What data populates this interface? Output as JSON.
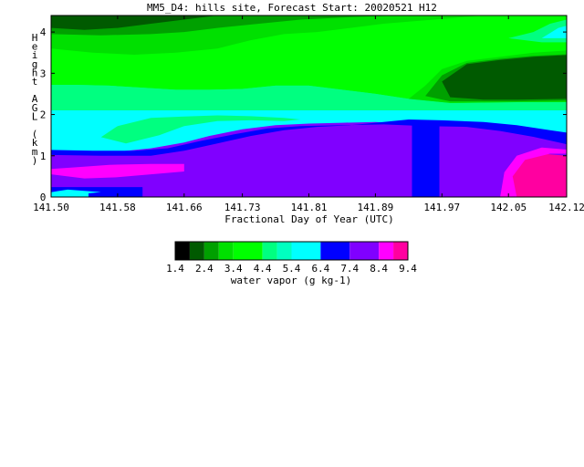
{
  "title": "MM5_D4: hills site,  Forecast Start: 20020521 H12",
  "chart_data": {
    "type": "heatmap",
    "title": "MM5_D4: hills site,  Forecast Start: 20020521 H12",
    "xlabel": "Fractional Day of Year (UTC)",
    "ylabel": "Height AGL (km)",
    "xlim": [
      141.5,
      142.12
    ],
    "ylim": [
      0,
      4.4
    ],
    "x_ticks": [
      "141.50",
      "141.58",
      "141.66",
      "141.73",
      "141.81",
      "141.89",
      "141.97",
      "142.05",
      "142.12"
    ],
    "x_tick_values": [
      141.5,
      141.58,
      141.66,
      141.73,
      141.81,
      141.89,
      141.97,
      142.05,
      142.12
    ],
    "y_ticks": [
      "0",
      "1",
      "2",
      "3",
      "4"
    ],
    "y_tick_values": [
      0,
      1,
      2,
      3,
      4
    ],
    "colorbar": {
      "label": "water vapor (g kg-1)",
      "tick_labels": [
        "1.4",
        "2.4",
        "3.4",
        "4.4",
        "5.4",
        "6.4",
        "7.4",
        "8.4",
        "9.4"
      ],
      "bins": [
        {
          "range": [
            1.4,
            1.9
          ],
          "color": "#000000"
        },
        {
          "range": [
            1.9,
            2.4
          ],
          "color": "#005a00"
        },
        {
          "range": [
            2.4,
            2.9
          ],
          "color": "#00a000"
        },
        {
          "range": [
            2.9,
            3.4
          ],
          "color": "#00e000"
        },
        {
          "range": [
            3.4,
            4.4
          ],
          "color": "#00ff00"
        },
        {
          "range": [
            4.4,
            4.9
          ],
          "color": "#00ff80"
        },
        {
          "range": [
            4.9,
            5.4
          ],
          "color": "#00ffc0"
        },
        {
          "range": [
            5.4,
            6.4
          ],
          "color": "#00ffff"
        },
        {
          "range": [
            6.4,
            7.4
          ],
          "color": "#0000ff"
        },
        {
          "range": [
            7.4,
            8.4
          ],
          "color": "#8000ff"
        },
        {
          "range": [
            8.4,
            8.9
          ],
          "color": "#ff00ff"
        },
        {
          "range": [
            8.9,
            9.4
          ],
          "color": "#ff00a0"
        }
      ]
    },
    "regions": [
      {
        "level": "5.9",
        "color": "#00ffff",
        "polygon": [
          [
            141.5,
            0.0
          ],
          [
            142.12,
            0.0
          ],
          [
            142.12,
            2.1
          ],
          [
            141.5,
            2.1
          ]
        ]
      },
      {
        "level": "7.9",
        "color": "#8000ff",
        "polygon": [
          [
            141.5,
            0.0
          ],
          [
            142.12,
            0.0
          ],
          [
            142.12,
            1.3
          ],
          [
            142.09,
            1.45
          ],
          [
            142.06,
            1.6
          ],
          [
            142.02,
            1.72
          ],
          [
            141.97,
            1.76
          ],
          [
            141.93,
            1.78
          ],
          [
            141.89,
            1.82
          ],
          [
            141.85,
            1.8
          ],
          [
            141.81,
            1.78
          ],
          [
            141.77,
            1.74
          ],
          [
            141.73,
            1.64
          ],
          [
            141.69,
            1.48
          ],
          [
            141.66,
            1.32
          ],
          [
            141.62,
            1.18
          ],
          [
            141.58,
            1.1
          ],
          [
            141.54,
            1.1
          ],
          [
            141.5,
            1.1
          ]
        ]
      },
      {
        "level": "6.9",
        "color": "#0000ff",
        "polygon": [
          [
            141.5,
            1.02
          ],
          [
            141.56,
            1.0
          ],
          [
            141.62,
            1.0
          ],
          [
            141.66,
            1.12
          ],
          [
            141.7,
            1.3
          ],
          [
            141.74,
            1.48
          ],
          [
            141.78,
            1.62
          ],
          [
            141.82,
            1.7
          ],
          [
            141.86,
            1.74
          ],
          [
            141.89,
            1.8
          ],
          [
            141.93,
            1.88
          ],
          [
            141.97,
            1.86
          ],
          [
            142.02,
            1.82
          ],
          [
            142.06,
            1.74
          ],
          [
            142.1,
            1.62
          ],
          [
            142.12,
            1.56
          ],
          [
            142.12,
            1.28
          ],
          [
            142.08,
            1.46
          ],
          [
            142.04,
            1.6
          ],
          [
            142.0,
            1.7
          ],
          [
            141.95,
            1.72
          ],
          [
            141.9,
            1.76
          ],
          [
            141.85,
            1.74
          ],
          [
            141.8,
            1.72
          ],
          [
            141.76,
            1.66
          ],
          [
            141.72,
            1.52
          ],
          [
            141.68,
            1.36
          ],
          [
            141.64,
            1.18
          ],
          [
            141.6,
            1.12
          ],
          [
            141.55,
            1.12
          ],
          [
            141.5,
            1.14
          ]
        ]
      },
      {
        "level": "6.9",
        "color": "#0000ff",
        "polygon": [
          [
            141.934,
            0.0
          ],
          [
            141.967,
            0.0
          ],
          [
            141.967,
            1.75
          ],
          [
            141.934,
            1.75
          ]
        ]
      },
      {
        "level": "7.9",
        "color": "#8000ff",
        "polygon": [
          [
            141.967,
            0.0
          ],
          [
            142.04,
            0.0
          ],
          [
            142.04,
            0.6
          ],
          [
            142.06,
            0.9
          ],
          [
            142.02,
            1.2
          ],
          [
            142.0,
            1.5
          ],
          [
            141.967,
            1.7
          ]
        ]
      },
      {
        "level": "6.9",
        "color": "#0000ff",
        "polygon": [
          [
            141.5,
            0.0
          ],
          [
            141.61,
            0.0
          ],
          [
            141.61,
            0.24
          ],
          [
            141.5,
            0.24
          ]
        ]
      },
      {
        "level": "5.9",
        "color": "#00ffff",
        "polygon": [
          [
            141.5,
            0.0
          ],
          [
            141.545,
            0.0
          ],
          [
            141.545,
            0.1
          ],
          [
            141.5,
            0.12
          ]
        ]
      },
      {
        "level": "5.9",
        "color": "#00ffff",
        "polygon": [
          [
            141.5,
            0.12
          ],
          [
            141.54,
            0.08
          ],
          [
            141.56,
            0.12
          ],
          [
            141.52,
            0.18
          ]
        ]
      },
      {
        "level": "8.6",
        "color": "#ff00ff",
        "polygon": [
          [
            141.5,
            0.68
          ],
          [
            141.53,
            0.72
          ],
          [
            141.57,
            0.78
          ],
          [
            141.62,
            0.8
          ],
          [
            141.66,
            0.8
          ],
          [
            141.66,
            0.62
          ],
          [
            141.62,
            0.55
          ],
          [
            141.58,
            0.48
          ],
          [
            141.54,
            0.45
          ],
          [
            141.52,
            0.5
          ],
          [
            141.5,
            0.55
          ]
        ]
      },
      {
        "level": "9.1",
        "color": "#ff00a0",
        "polygon": [
          [
            142.06,
            0.0
          ],
          [
            142.12,
            0.0
          ],
          [
            142.12,
            1.0
          ],
          [
            142.09,
            1.05
          ],
          [
            142.06,
            0.95
          ],
          [
            142.05,
            0.7
          ],
          [
            142.05,
            0.3
          ]
        ]
      },
      {
        "level": "8.6",
        "color": "#ff00ff",
        "polygon": [
          [
            142.04,
            0.0
          ],
          [
            142.06,
            0.0
          ],
          [
            142.055,
            0.5
          ],
          [
            142.07,
            0.9
          ],
          [
            142.1,
            1.05
          ],
          [
            142.12,
            1.05
          ],
          [
            142.12,
            1.15
          ],
          [
            142.09,
            1.2
          ],
          [
            142.06,
            1.0
          ],
          [
            142.045,
            0.6
          ]
        ]
      },
      {
        "level": "4.9",
        "color": "#00ff80",
        "polygon": [
          [
            141.5,
            2.1
          ],
          [
            142.12,
            2.1
          ],
          [
            142.12,
            2.3
          ],
          [
            142.06,
            2.3
          ],
          [
            141.98,
            2.28
          ],
          [
            141.93,
            2.38
          ],
          [
            141.89,
            2.5
          ],
          [
            141.85,
            2.6
          ],
          [
            141.81,
            2.7
          ],
          [
            141.77,
            2.7
          ],
          [
            141.73,
            2.62
          ],
          [
            141.69,
            2.6
          ],
          [
            141.65,
            2.6
          ],
          [
            141.61,
            2.65
          ],
          [
            141.57,
            2.7
          ],
          [
            141.53,
            2.72
          ],
          [
            141.5,
            2.72
          ]
        ]
      },
      {
        "level": "4.9",
        "color": "#00ff80",
        "polygon": [
          [
            141.59,
            1.3
          ],
          [
            141.63,
            1.5
          ],
          [
            141.66,
            1.72
          ],
          [
            141.7,
            1.84
          ],
          [
            141.74,
            1.86
          ],
          [
            141.78,
            1.84
          ],
          [
            141.8,
            1.88
          ],
          [
            141.78,
            1.92
          ],
          [
            141.74,
            1.96
          ],
          [
            141.7,
            1.98
          ],
          [
            141.66,
            1.95
          ],
          [
            141.62,
            1.92
          ],
          [
            141.58,
            1.72
          ],
          [
            141.56,
            1.45
          ]
        ]
      },
      {
        "level": "3.9",
        "color": "#00ff00",
        "polygon": [
          [
            141.5,
            2.72
          ],
          [
            141.53,
            2.72
          ],
          [
            141.57,
            2.7
          ],
          [
            141.61,
            2.65
          ],
          [
            141.65,
            2.6
          ],
          [
            141.69,
            2.6
          ],
          [
            141.73,
            2.62
          ],
          [
            141.77,
            2.7
          ],
          [
            141.81,
            2.7
          ],
          [
            141.85,
            2.6
          ],
          [
            141.89,
            2.5
          ],
          [
            141.93,
            2.38
          ],
          [
            141.98,
            2.28
          ],
          [
            142.06,
            2.3
          ],
          [
            142.12,
            2.3
          ],
          [
            142.12,
            4.4
          ],
          [
            141.5,
            4.4
          ]
        ]
      },
      {
        "level": "3.1",
        "color": "#00e000",
        "polygon": [
          [
            141.5,
            3.6
          ],
          [
            141.55,
            3.5
          ],
          [
            141.6,
            3.45
          ],
          [
            141.65,
            3.5
          ],
          [
            141.7,
            3.6
          ],
          [
            141.74,
            3.8
          ],
          [
            141.78,
            3.95
          ],
          [
            141.82,
            4.0
          ],
          [
            141.86,
            4.1
          ],
          [
            141.9,
            4.2
          ],
          [
            141.96,
            4.3
          ],
          [
            142.02,
            4.4
          ],
          [
            141.5,
            4.4
          ]
        ]
      },
      {
        "level": "2.6",
        "color": "#00a000",
        "polygon": [
          [
            141.5,
            3.95
          ],
          [
            141.56,
            3.92
          ],
          [
            141.62,
            3.95
          ],
          [
            141.66,
            4.0
          ],
          [
            141.7,
            4.1
          ],
          [
            141.75,
            4.2
          ],
          [
            141.8,
            4.3
          ],
          [
            141.86,
            4.36
          ],
          [
            141.92,
            4.4
          ],
          [
            141.5,
            4.4
          ]
        ]
      },
      {
        "level": "2.1",
        "color": "#005a00",
        "polygon": [
          [
            141.5,
            4.1
          ],
          [
            141.54,
            4.05
          ],
          [
            141.58,
            4.1
          ],
          [
            141.62,
            4.2
          ],
          [
            141.66,
            4.3
          ],
          [
            141.7,
            4.4
          ],
          [
            141.5,
            4.4
          ]
        ]
      },
      {
        "level": "3.1",
        "color": "#00e000",
        "polygon": [
          [
            141.93,
            2.38
          ],
          [
            141.95,
            2.7
          ],
          [
            141.97,
            3.1
          ],
          [
            142.0,
            3.3
          ],
          [
            142.04,
            3.4
          ],
          [
            142.08,
            3.5
          ],
          [
            142.12,
            3.55
          ],
          [
            142.12,
            2.3
          ],
          [
            142.06,
            2.3
          ],
          [
            141.98,
            2.28
          ]
        ]
      },
      {
        "level": "2.6",
        "color": "#00a000",
        "polygon": [
          [
            141.95,
            2.45
          ],
          [
            141.97,
            2.95
          ],
          [
            142.0,
            3.25
          ],
          [
            142.04,
            3.35
          ],
          [
            142.08,
            3.42
          ],
          [
            142.12,
            3.46
          ],
          [
            142.12,
            2.34
          ],
          [
            142.06,
            2.32
          ],
          [
            141.98,
            2.32
          ]
        ]
      },
      {
        "level": "2.1",
        "color": "#005a00",
        "polygon": [
          [
            141.98,
            2.42
          ],
          [
            141.97,
            2.8
          ],
          [
            142.0,
            3.22
          ],
          [
            142.04,
            3.32
          ],
          [
            142.08,
            3.4
          ],
          [
            142.12,
            3.44
          ],
          [
            142.12,
            2.38
          ],
          [
            142.06,
            2.36
          ],
          [
            142.02,
            2.36
          ]
        ]
      },
      {
        "level": "4.9",
        "color": "#00ff80",
        "polygon": [
          [
            142.05,
            3.85
          ],
          [
            142.08,
            4.0
          ],
          [
            142.1,
            4.2
          ],
          [
            142.12,
            4.3
          ],
          [
            142.12,
            3.75
          ],
          [
            142.09,
            3.75
          ]
        ]
      },
      {
        "level": "5.9",
        "color": "#00ffff",
        "polygon": [
          [
            142.09,
            3.85
          ],
          [
            142.11,
            4.1
          ],
          [
            142.12,
            4.15
          ],
          [
            142.12,
            3.85
          ]
        ]
      }
    ]
  }
}
